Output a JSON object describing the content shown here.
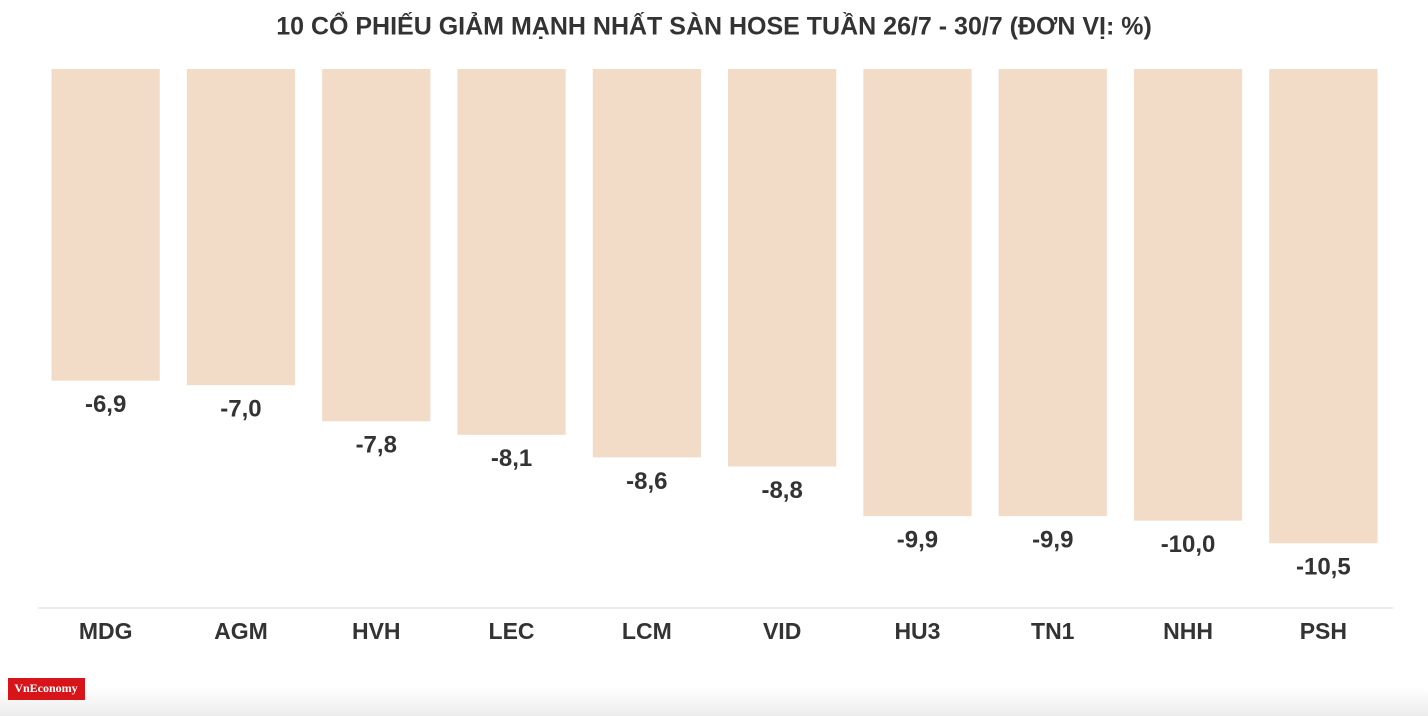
{
  "chart_data": {
    "type": "bar",
    "title": "10 CỔ PHIẾU GIẢM MẠNH NHẤT SÀN HOSE TUẦN 26/7 - 30/7 (ĐƠN VỊ: %)",
    "categories": [
      "MDG",
      "AGM",
      "HVH",
      "LEC",
      "LCM",
      "VID",
      "HU3",
      "TN1",
      "NHH",
      "PSH"
    ],
    "values": [
      -6.9,
      -7.0,
      -7.8,
      -8.1,
      -8.6,
      -8.8,
      -9.9,
      -9.9,
      -10.0,
      -10.5
    ],
    "value_labels": [
      "-6,9",
      "-7,0",
      "-7,8",
      "-8,1",
      "-8,6",
      "-8,8",
      "-9,9",
      "-9,9",
      "-10,0",
      "-10,5"
    ],
    "color": "#f2dcc8",
    "ylim": [
      -12,
      0
    ],
    "grid": false,
    "source": "VnEconomy"
  }
}
